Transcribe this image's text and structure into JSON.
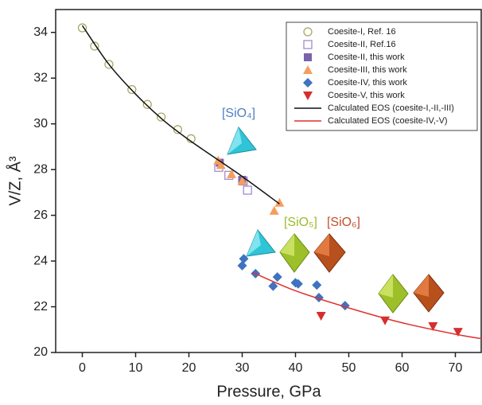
{
  "chart_data": {
    "type": "scatter",
    "xlabel": "Pressure, GPa",
    "ylabel": "V/Z, Å³",
    "xlim": [
      -5,
      75
    ],
    "xticks": [
      0,
      10,
      20,
      30,
      40,
      50,
      60,
      70
    ],
    "ylim": [
      20,
      35
    ],
    "yticks": [
      20,
      22,
      24,
      26,
      28,
      30,
      32,
      34
    ],
    "legend": "upper right",
    "series": [
      {
        "name": "Coesite-I, Ref. 16",
        "marker": "circle-open",
        "color": "#a3a35a",
        "x": [
          0,
          2.3,
          5,
          9.3,
          12.2,
          14.8,
          17.9,
          20.4
        ],
        "values": [
          34.2,
          33.4,
          32.6,
          31.5,
          30.85,
          30.3,
          29.75,
          29.35
        ]
      },
      {
        "name": "Coesite-II, Ref.16",
        "marker": "square-open",
        "color": "#9b82c9",
        "x": [
          25.6,
          27.5,
          30.2,
          31
        ],
        "values": [
          28.1,
          27.75,
          27.5,
          27.1
        ]
      },
      {
        "name": "Coesite-II, this work",
        "marker": "square",
        "color": "#7b62aa",
        "x": [
          25.8,
          30
        ],
        "values": [
          28.3,
          27.55
        ]
      },
      {
        "name": "Coesite-III, this work",
        "marker": "triangle",
        "color": "#f59d5f",
        "x": [
          25.5,
          26,
          28,
          30,
          36,
          37
        ],
        "values": [
          28.4,
          28.2,
          27.8,
          27.5,
          26.2,
          26.55
        ]
      },
      {
        "name": "Coesite-IV, this work",
        "marker": "diamond",
        "color": "#3f72c0",
        "x": [
          30,
          30.3,
          32.5,
          35.8,
          36.6,
          40,
          40.5,
          44,
          44.4,
          49.3
        ],
        "values": [
          23.8,
          24.1,
          23.45,
          22.9,
          23.3,
          23.05,
          23,
          22.95,
          22.4,
          22.05
        ]
      },
      {
        "name": "Coesite-V, this work",
        "marker": "triangle-down",
        "color": "#d62e2e",
        "x": [
          44.8,
          56.8,
          65.8,
          70.5
        ],
        "values": [
          21.6,
          21.4,
          21.15,
          20.9
        ]
      },
      {
        "name": "Calculated EOS (coesite-I,-II,-III)",
        "marker": "line",
        "color": "#111111",
        "x": [
          0,
          5,
          10,
          15,
          20,
          25,
          30,
          37
        ],
        "values": [
          34.3,
          32.6,
          31.3,
          30.2,
          29.3,
          28.5,
          27.7,
          26.5
        ]
      },
      {
        "name": "Calculated EOS (coesite-IV,-V)",
        "marker": "line",
        "color": "#e03030",
        "x": [
          32,
          40,
          50,
          60,
          70,
          75
        ],
        "values": [
          23.5,
          22.7,
          21.95,
          21.3,
          20.8,
          20.6
        ]
      }
    ],
    "annotations": [
      {
        "text": "[SiO₄]",
        "color": "#4f7fc4"
      },
      {
        "text": "[SiO₅]",
        "color": "#9dbb2a"
      },
      {
        "text": "[SiO₆]",
        "color": "#c0502a"
      }
    ]
  }
}
